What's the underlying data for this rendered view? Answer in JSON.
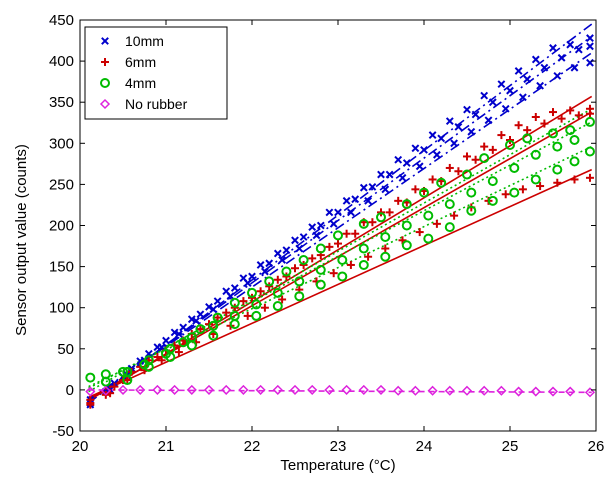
{
  "chart_data": {
    "type": "scatter",
    "title": "",
    "xlabel": "Temperature (°C)",
    "ylabel": "Sensor output value (counts)",
    "xlim": [
      20,
      26
    ],
    "ylim": [
      -50,
      450
    ],
    "xticks": [
      20,
      21,
      22,
      23,
      24,
      25,
      26
    ],
    "yticks": [
      -50,
      0,
      50,
      100,
      150,
      200,
      250,
      300,
      350,
      400,
      450
    ],
    "legend_position": "top-left",
    "grid": false,
    "series": [
      {
        "name": "10mm",
        "marker": "x",
        "color": "#0000cc",
        "fit_style": "dash-dot",
        "fits": [
          {
            "x": [
              20.1,
              25.95
            ],
            "y": [
              -16,
              445
            ]
          },
          {
            "x": [
              20.1,
              25.95
            ],
            "y": [
              -14,
              430
            ]
          },
          {
            "x": [
              20.1,
              25.95
            ],
            "y": [
              -12,
              410
            ]
          }
        ],
        "points": [
          [
            20.12,
            -18
          ],
          [
            20.3,
            -2
          ],
          [
            20.5,
            16
          ],
          [
            20.7,
            35
          ],
          [
            20.9,
            52
          ],
          [
            21.1,
            70
          ],
          [
            21.3,
            86
          ],
          [
            21.5,
            101
          ],
          [
            21.7,
            120
          ],
          [
            21.9,
            136
          ],
          [
            22.1,
            152
          ],
          [
            22.3,
            166
          ],
          [
            22.5,
            182
          ],
          [
            22.7,
            198
          ],
          [
            22.9,
            216
          ],
          [
            23.1,
            230
          ],
          [
            23.3,
            246
          ],
          [
            23.5,
            262
          ],
          [
            23.7,
            280
          ],
          [
            23.9,
            294
          ],
          [
            24.1,
            310
          ],
          [
            24.3,
            327
          ],
          [
            24.5,
            341
          ],
          [
            24.7,
            358
          ],
          [
            24.9,
            372
          ],
          [
            25.1,
            388
          ],
          [
            25.3,
            402
          ],
          [
            25.5,
            416
          ],
          [
            25.7,
            420
          ],
          [
            25.93,
            428
          ],
          [
            20.12,
            -12
          ],
          [
            20.4,
            8
          ],
          [
            20.6,
            26
          ],
          [
            20.8,
            44
          ],
          [
            21.0,
            60
          ],
          [
            21.2,
            76
          ],
          [
            21.4,
            92
          ],
          [
            21.6,
            108
          ],
          [
            21.8,
            124
          ],
          [
            22.0,
            138
          ],
          [
            22.2,
            154
          ],
          [
            22.4,
            170
          ],
          [
            22.6,
            186
          ],
          [
            22.8,
            200
          ],
          [
            23.0,
            216
          ],
          [
            23.2,
            232
          ],
          [
            23.4,
            247
          ],
          [
            23.6,
            262
          ],
          [
            23.8,
            276
          ],
          [
            24.0,
            292
          ],
          [
            24.2,
            306
          ],
          [
            24.4,
            320
          ],
          [
            24.6,
            335
          ],
          [
            24.8,
            350
          ],
          [
            25.0,
            364
          ],
          [
            25.2,
            378
          ],
          [
            25.4,
            392
          ],
          [
            25.6,
            404
          ],
          [
            25.8,
            414
          ],
          [
            25.93,
            418
          ],
          [
            20.12,
            -16
          ],
          [
            20.35,
            0
          ],
          [
            20.55,
            18
          ],
          [
            20.75,
            36
          ],
          [
            20.95,
            52
          ],
          [
            21.15,
            68
          ],
          [
            21.35,
            84
          ],
          [
            21.55,
            98
          ],
          [
            21.75,
            114
          ],
          [
            21.95,
            130
          ],
          [
            22.15,
            144
          ],
          [
            22.35,
            158
          ],
          [
            22.55,
            172
          ],
          [
            22.75,
            188
          ],
          [
            22.95,
            202
          ],
          [
            23.15,
            216
          ],
          [
            23.35,
            230
          ],
          [
            23.55,
            244
          ],
          [
            23.75,
            258
          ],
          [
            23.95,
            272
          ],
          [
            24.15,
            286
          ],
          [
            24.35,
            300
          ],
          [
            24.55,
            314
          ],
          [
            24.75,
            328
          ],
          [
            24.95,
            342
          ],
          [
            25.15,
            356
          ],
          [
            25.35,
            370
          ],
          [
            25.55,
            382
          ],
          [
            25.75,
            392
          ],
          [
            25.93,
            398
          ]
        ]
      },
      {
        "name": "6mm",
        "marker": "+",
        "color": "#cc0000",
        "fit_style": "solid",
        "fits": [
          {
            "x": [
              20.1,
              25.95
            ],
            "y": [
              -13,
              357
            ]
          },
          {
            "x": [
              20.1,
              25.95
            ],
            "y": [
              -11,
              338
            ]
          },
          {
            "x": [
              20.1,
              25.95
            ],
            "y": [
              -9,
              268
            ]
          }
        ],
        "points": [
          [
            20.12,
            -12
          ],
          [
            20.3,
            -6
          ],
          [
            20.5,
            12
          ],
          [
            20.7,
            28
          ],
          [
            20.9,
            40
          ],
          [
            21.1,
            54
          ],
          [
            21.3,
            68
          ],
          [
            21.5,
            80
          ],
          [
            21.7,
            94
          ],
          [
            21.9,
            108
          ],
          [
            22.1,
            120
          ],
          [
            22.3,
            134
          ],
          [
            22.5,
            148
          ],
          [
            22.7,
            160
          ],
          [
            22.9,
            174
          ],
          [
            23.1,
            190
          ],
          [
            23.3,
            204
          ],
          [
            23.5,
            216
          ],
          [
            23.7,
            230
          ],
          [
            23.9,
            244
          ],
          [
            24.1,
            256
          ],
          [
            24.3,
            270
          ],
          [
            24.5,
            284
          ],
          [
            24.7,
            296
          ],
          [
            24.9,
            310
          ],
          [
            25.1,
            322
          ],
          [
            25.3,
            332
          ],
          [
            25.5,
            338
          ],
          [
            25.7,
            340
          ],
          [
            25.93,
            342
          ],
          [
            20.12,
            -16
          ],
          [
            20.4,
            4
          ],
          [
            20.6,
            22
          ],
          [
            20.8,
            36
          ],
          [
            21.0,
            48
          ],
          [
            21.2,
            60
          ],
          [
            21.4,
            74
          ],
          [
            21.6,
            88
          ],
          [
            21.8,
            100
          ],
          [
            22.0,
            112
          ],
          [
            22.2,
            126
          ],
          [
            22.4,
            138
          ],
          [
            22.6,
            152
          ],
          [
            22.8,
            164
          ],
          [
            23.0,
            178
          ],
          [
            23.2,
            190
          ],
          [
            23.4,
            204
          ],
          [
            23.6,
            216
          ],
          [
            23.8,
            228
          ],
          [
            24.0,
            242
          ],
          [
            24.2,
            254
          ],
          [
            24.4,
            266
          ],
          [
            24.6,
            280
          ],
          [
            24.8,
            292
          ],
          [
            25.0,
            304
          ],
          [
            25.2,
            316
          ],
          [
            25.4,
            324
          ],
          [
            25.6,
            330
          ],
          [
            25.8,
            334
          ],
          [
            25.93,
            336
          ],
          [
            20.12,
            -18
          ],
          [
            20.35,
            -4
          ],
          [
            20.55,
            12
          ],
          [
            20.75,
            24
          ],
          [
            20.95,
            36
          ],
          [
            21.15,
            46
          ],
          [
            21.35,
            58
          ],
          [
            21.55,
            68
          ],
          [
            21.75,
            78
          ],
          [
            21.95,
            90
          ],
          [
            22.15,
            100
          ],
          [
            22.35,
            110
          ],
          [
            22.55,
            122
          ],
          [
            22.75,
            132
          ],
          [
            22.95,
            142
          ],
          [
            23.15,
            152
          ],
          [
            23.35,
            162
          ],
          [
            23.55,
            172
          ],
          [
            23.75,
            182
          ],
          [
            23.95,
            192
          ],
          [
            24.15,
            202
          ],
          [
            24.35,
            212
          ],
          [
            24.55,
            222
          ],
          [
            24.75,
            230
          ],
          [
            24.95,
            238
          ],
          [
            25.15,
            244
          ],
          [
            25.35,
            248
          ],
          [
            25.55,
            252
          ],
          [
            25.75,
            256
          ],
          [
            25.93,
            258
          ]
        ]
      },
      {
        "name": "4mm",
        "marker": "o",
        "color": "#00bb00",
        "fit_style": "dotted",
        "fits": [
          {
            "x": [
              20.1,
              25.95
            ],
            "y": [
              -2,
              342
            ]
          },
          {
            "x": [
              20.1,
              25.95
            ],
            "y": [
              2,
              326
            ]
          },
          {
            "x": [
              20.1,
              25.95
            ],
            "y": [
              4,
              296
            ]
          }
        ],
        "points": [
          [
            20.12,
            15
          ],
          [
            20.3,
            19
          ],
          [
            20.5,
            22
          ],
          [
            20.75,
            31
          ],
          [
            21.0,
            44
          ],
          [
            21.2,
            58
          ],
          [
            21.4,
            74
          ],
          [
            21.6,
            88
          ],
          [
            21.8,
            106
          ],
          [
            22.0,
            118
          ],
          [
            22.2,
            132
          ],
          [
            22.4,
            144
          ],
          [
            22.6,
            158
          ],
          [
            22.8,
            172
          ],
          [
            23.0,
            188
          ],
          [
            23.3,
            202
          ],
          [
            23.5,
            210
          ],
          [
            23.8,
            226
          ],
          [
            24.0,
            240
          ],
          [
            24.2,
            252
          ],
          [
            24.5,
            262
          ],
          [
            24.7,
            282
          ],
          [
            25.0,
            298
          ],
          [
            25.2,
            306
          ],
          [
            25.5,
            312
          ],
          [
            25.7,
            316
          ],
          [
            25.93,
            326
          ],
          [
            20.3,
            10
          ],
          [
            20.55,
            22
          ],
          [
            20.8,
            36
          ],
          [
            21.05,
            50
          ],
          [
            21.3,
            64
          ],
          [
            21.55,
            78
          ],
          [
            21.8,
            90
          ],
          [
            22.05,
            104
          ],
          [
            22.3,
            118
          ],
          [
            22.55,
            132
          ],
          [
            22.8,
            146
          ],
          [
            23.05,
            158
          ],
          [
            23.3,
            172
          ],
          [
            23.55,
            186
          ],
          [
            23.8,
            200
          ],
          [
            24.05,
            212
          ],
          [
            24.3,
            226
          ],
          [
            24.55,
            240
          ],
          [
            24.8,
            254
          ],
          [
            25.05,
            270
          ],
          [
            25.3,
            286
          ],
          [
            25.55,
            296
          ],
          [
            25.75,
            304
          ],
          [
            20.55,
            12
          ],
          [
            20.8,
            28
          ],
          [
            21.05,
            40
          ],
          [
            21.3,
            54
          ],
          [
            21.55,
            66
          ],
          [
            21.8,
            80
          ],
          [
            22.05,
            90
          ],
          [
            22.3,
            102
          ],
          [
            22.55,
            114
          ],
          [
            22.8,
            128
          ],
          [
            23.05,
            138
          ],
          [
            23.3,
            152
          ],
          [
            23.55,
            162
          ],
          [
            23.8,
            176
          ],
          [
            24.05,
            184
          ],
          [
            24.3,
            198
          ],
          [
            24.55,
            218
          ],
          [
            24.8,
            230
          ],
          [
            25.05,
            240
          ],
          [
            25.3,
            256
          ],
          [
            25.55,
            268
          ],
          [
            25.75,
            278
          ],
          [
            25.93,
            290
          ]
        ]
      },
      {
        "name": "No rubber",
        "marker": "diamond",
        "color": "#dd22dd",
        "fit_style": "dashed",
        "fits": [
          {
            "x": [
              20.1,
              25.95
            ],
            "y": [
              0,
              -3
            ]
          }
        ],
        "points": [
          [
            20.12,
            -2
          ],
          [
            20.3,
            -1
          ],
          [
            20.5,
            0
          ],
          [
            20.7,
            0
          ],
          [
            20.9,
            0
          ],
          [
            21.1,
            0
          ],
          [
            21.3,
            0
          ],
          [
            21.5,
            0
          ],
          [
            21.7,
            0
          ],
          [
            21.9,
            0
          ],
          [
            22.1,
            0
          ],
          [
            22.3,
            0
          ],
          [
            22.5,
            0
          ],
          [
            22.7,
            0
          ],
          [
            22.9,
            0
          ],
          [
            23.1,
            0
          ],
          [
            23.3,
            0
          ],
          [
            23.5,
            0
          ],
          [
            23.7,
            -1
          ],
          [
            23.9,
            -1
          ],
          [
            24.1,
            -1
          ],
          [
            24.3,
            -1
          ],
          [
            24.5,
            -1
          ],
          [
            24.7,
            -1
          ],
          [
            24.9,
            -1
          ],
          [
            25.1,
            -2
          ],
          [
            25.3,
            -2
          ],
          [
            25.5,
            -2
          ],
          [
            25.7,
            -2
          ],
          [
            25.93,
            -3
          ]
        ]
      }
    ]
  }
}
